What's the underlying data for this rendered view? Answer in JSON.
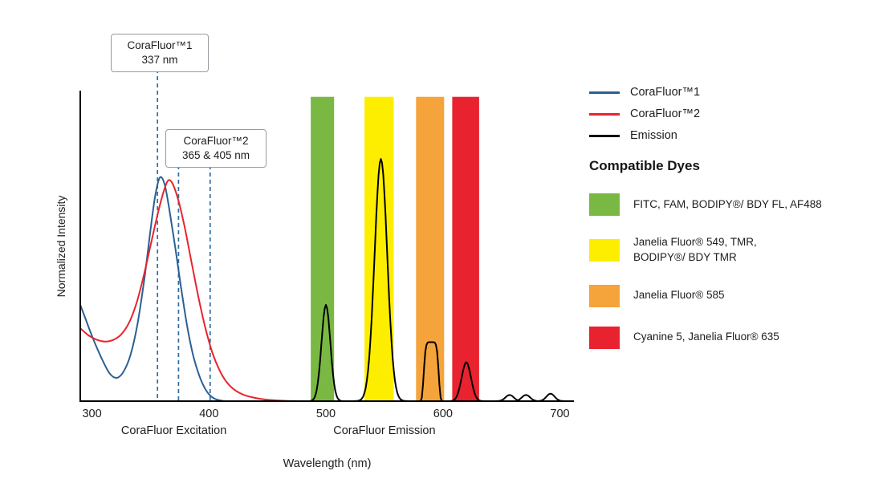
{
  "figure": {
    "background": "#ffffff",
    "text_color": "#1d1d1f"
  },
  "chart_data": {
    "type": "line",
    "title": "",
    "xlabel": "Wavelength (nm)",
    "ylabel": "Normalized Intensity",
    "xlim": [
      290,
      712
    ],
    "ylim": [
      0,
      1
    ],
    "grid": false,
    "x_ticks": [
      300,
      400,
      500,
      600,
      700
    ],
    "section_labels": [
      {
        "text": "CoraFluor Excitation",
        "x_nm": 370
      },
      {
        "text": "CoraFluor Emission",
        "x_nm": 550
      }
    ],
    "series": [
      {
        "name": "CoraFluor™1",
        "role": "excitation-corafluor1",
        "color": "#2b6094",
        "points": [
          [
            290,
            0.31
          ],
          [
            295,
            0.26
          ],
          [
            300,
            0.21
          ],
          [
            308,
            0.14
          ],
          [
            315,
            0.09
          ],
          [
            321,
            0.075
          ],
          [
            327,
            0.095
          ],
          [
            333,
            0.15
          ],
          [
            339,
            0.25
          ],
          [
            345,
            0.4
          ],
          [
            350,
            0.55
          ],
          [
            354,
            0.66
          ],
          [
            358,
            0.72
          ],
          [
            362,
            0.7
          ],
          [
            366,
            0.62
          ],
          [
            371,
            0.5
          ],
          [
            376,
            0.37
          ],
          [
            381,
            0.25
          ],
          [
            386,
            0.155
          ],
          [
            391,
            0.09
          ],
          [
            396,
            0.045
          ],
          [
            401,
            0.018
          ],
          [
            406,
            0.006
          ],
          [
            412,
            0.001
          ]
        ]
      },
      {
        "name": "CoraFluor™2",
        "role": "excitation-corafluor2",
        "color": "#e8242e",
        "points": [
          [
            290,
            0.235
          ],
          [
            297,
            0.212
          ],
          [
            304,
            0.198
          ],
          [
            311,
            0.192
          ],
          [
            318,
            0.197
          ],
          [
            325,
            0.215
          ],
          [
            332,
            0.255
          ],
          [
            338,
            0.315
          ],
          [
            344,
            0.4
          ],
          [
            350,
            0.5
          ],
          [
            356,
            0.6
          ],
          [
            361,
            0.672
          ],
          [
            365,
            0.71
          ],
          [
            369,
            0.7
          ],
          [
            374,
            0.645
          ],
          [
            379,
            0.565
          ],
          [
            385,
            0.45
          ],
          [
            391,
            0.335
          ],
          [
            397,
            0.235
          ],
          [
            403,
            0.155
          ],
          [
            409,
            0.1
          ],
          [
            415,
            0.062
          ],
          [
            422,
            0.036
          ],
          [
            430,
            0.02
          ],
          [
            440,
            0.01
          ],
          [
            452,
            0.004
          ],
          [
            465,
            0.001
          ],
          [
            478,
            0
          ]
        ]
      },
      {
        "name": "Emission",
        "role": "emission",
        "color": "#000000",
        "x_range": [
          478,
          710
        ],
        "peaks": [
          {
            "center_nm": 500,
            "height": 0.31,
            "sigma_nm": 3.8
          },
          {
            "center_nm": 547,
            "height": 0.78,
            "sigma_nm": 5.4
          },
          {
            "center_nm": 590,
            "height": 0.19,
            "sigma_nm": 6,
            "power": 6
          },
          {
            "center_nm": 620,
            "height": 0.125,
            "sigma_nm": 4
          },
          {
            "center_nm": 657,
            "height": 0.02,
            "sigma_nm": 3.5
          },
          {
            "center_nm": 671,
            "height": 0.02,
            "sigma_nm": 3.5
          },
          {
            "center_nm": 692,
            "height": 0.024,
            "sigma_nm": 3.5
          }
        ]
      }
    ],
    "dye_bands": [
      {
        "dyes": "FITC, FAM, BODIPY®/ BDY FL, AF488",
        "color": "#79b943",
        "from_nm": 487,
        "to_nm": 507
      },
      {
        "dyes": "Janelia Fluor® 549, TMR, BODIPY®/ BDY TMR",
        "color": "#fdee00",
        "from_nm": 533,
        "to_nm": 558
      },
      {
        "dyes": "Janelia Fluor® 585",
        "color": "#f5a33b",
        "from_nm": 577,
        "to_nm": 601
      },
      {
        "dyes": "Cyanine 5, Janelia Fluor® 635",
        "color": "#e9222f",
        "from_nm": 608,
        "to_nm": 631
      }
    ],
    "band_top": 0.98,
    "annotations": [
      {
        "title": "CoraFluor™1",
        "subtitle": "337 nm",
        "dashed_lines_nm": [
          356
        ]
      },
      {
        "title": "CoraFluor™2",
        "subtitle": "365 & 405 nm",
        "dashed_lines_nm": [
          374,
          401
        ]
      }
    ],
    "dashed_line_color": "#2e6da3",
    "axis_color": "#000000"
  },
  "legend": {
    "items": [
      {
        "label": "CoraFluor™1",
        "color": "#2b6094"
      },
      {
        "label": "CoraFluor™2",
        "color": "#e8242e"
      },
      {
        "label": "Emission",
        "color": "#000000"
      }
    ],
    "compatible_dyes_heading": "Compatible Dyes",
    "dyes": [
      {
        "color": "#79b943",
        "lines": [
          "FITC, FAM, BODIPY®/ BDY FL, AF488"
        ]
      },
      {
        "color": "#fdee00",
        "lines": [
          "Janelia Fluor® 549, TMR,",
          "BODIPY®/ BDY TMR"
        ]
      },
      {
        "color": "#f5a33b",
        "lines": [
          "Janelia Fluor® 585"
        ]
      },
      {
        "color": "#e9222f",
        "lines": [
          "Cyanine 5, Janelia Fluor® 635"
        ]
      }
    ]
  }
}
